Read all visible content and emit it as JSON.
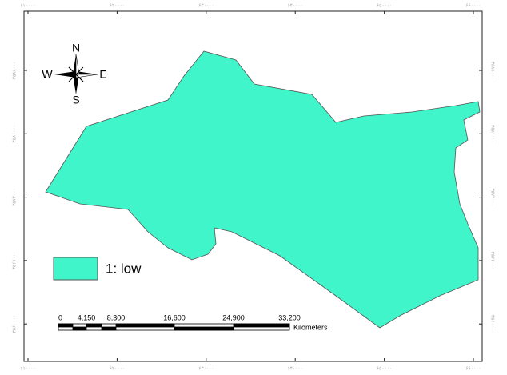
{
  "map": {
    "x_labels": [
      "۶۱۰۰۰۰",
      "۶۲۰۰۰۰",
      "۶۳۰۰۰۰",
      "۶۴۰۰۰۰",
      "۶۵۰۰۰۰",
      "۶۶۰۰۰۰"
    ],
    "y_labels": [
      "۳۵۸۸۰۰۰",
      "۳۵۸۱۰۰۰",
      "۳۵۷۴۰۰۰",
      "۳۵۶۷۰۰۰",
      "۳۵۶۰۰۰۰"
    ],
    "compass": {
      "north": "N",
      "south": "S",
      "east": "E",
      "west": "W"
    },
    "legend": {
      "label": "1: low"
    },
    "scale_bar": {
      "labels": [
        "0",
        "4,150",
        "8,300",
        "16,600",
        "24,900",
        "33,200"
      ],
      "unit": "Kilometers"
    }
  }
}
